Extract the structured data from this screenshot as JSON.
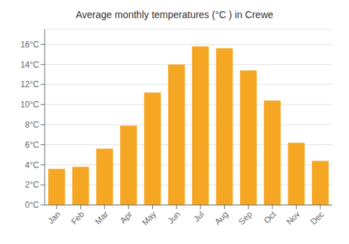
{
  "chart_data": {
    "type": "bar",
    "title": "Average monthly temperatures (°C ) in Crewe",
    "categories": [
      "Jan",
      "Feb",
      "Mar",
      "Apr",
      "May",
      "Jun",
      "Jul",
      "Aug",
      "Sep",
      "Oct",
      "Nov",
      "Dec"
    ],
    "values": [
      3.6,
      3.8,
      5.6,
      7.9,
      11.2,
      14.0,
      15.8,
      15.6,
      13.4,
      10.4,
      6.2,
      4.4
    ],
    "color": "#F5A623",
    "ylim": [
      0,
      17.5
    ],
    "yticks": [
      {
        "value": 0,
        "label": "0°C"
      },
      {
        "value": 2,
        "label": "2°C"
      },
      {
        "value": 4,
        "label": "4°C"
      },
      {
        "value": 6,
        "label": "6°C"
      },
      {
        "value": 8,
        "label": "8°C"
      },
      {
        "value": 10,
        "label": "10°C"
      },
      {
        "value": 12,
        "label": "12°C"
      },
      {
        "value": 14,
        "label": "14°C"
      },
      {
        "value": 16,
        "label": "16°C"
      }
    ],
    "grid": true
  }
}
